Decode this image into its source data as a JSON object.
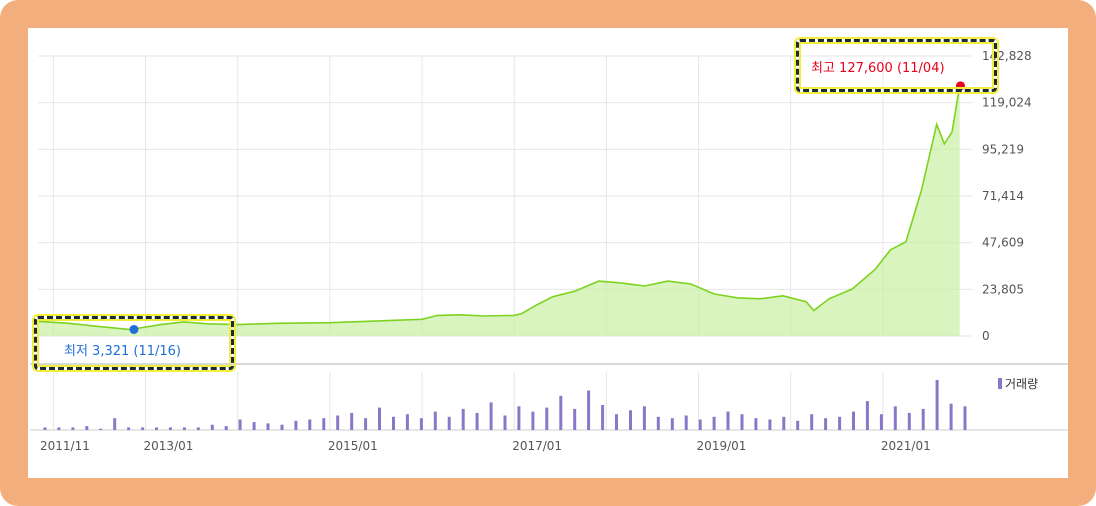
{
  "chart_data": {
    "type": "line",
    "price_axis": {
      "ylim": [
        0,
        142828
      ],
      "ticks": [
        "0",
        "23,805",
        "47,609",
        "71,414",
        "95,219",
        "119,024",
        "142,828"
      ]
    },
    "x_ticks": [
      "2011/11",
      "2013/01",
      "2015/01",
      "2017/01",
      "2019/01",
      "2021/01"
    ],
    "volume_label": "거래량",
    "price_series": {
      "dates": [
        "2011-11",
        "2012-03",
        "2012-06",
        "2012-11",
        "2013-03",
        "2013-06",
        "2013-09",
        "2014-01",
        "2014-06",
        "2015-01",
        "2015-06",
        "2016-01",
        "2016-03",
        "2016-06",
        "2016-09",
        "2017-01",
        "2017-02",
        "2017-04",
        "2017-06",
        "2017-09",
        "2017-12",
        "2018-03",
        "2018-06",
        "2018-09",
        "2018-12",
        "2019-03",
        "2019-06",
        "2019-09",
        "2019-12",
        "2020-03",
        "2020-04",
        "2020-06",
        "2020-09",
        "2020-12",
        "2021-02",
        "2021-04",
        "2021-06",
        "2021-08",
        "2021-09",
        "2021-10",
        "2021-11"
      ],
      "values": [
        7500,
        6500,
        5200,
        3321,
        5800,
        7200,
        6200,
        5800,
        6500,
        6800,
        7500,
        8500,
        10500,
        10800,
        10200,
        10500,
        11500,
        16000,
        20000,
        23000,
        28000,
        27000,
        25500,
        28000,
        26500,
        21500,
        19500,
        19000,
        20500,
        17500,
        13000,
        19000,
        24000,
        34000,
        44000,
        48000,
        74000,
        108000,
        98000,
        104000,
        127600
      ]
    },
    "volume_series": {
      "values": [
        2,
        2,
        2,
        3,
        1,
        9,
        2,
        2,
        2,
        2,
        2,
        2,
        4,
        3,
        8,
        6,
        5,
        4,
        7,
        8,
        9,
        11,
        13,
        9,
        17,
        10,
        12,
        9,
        14,
        10,
        16,
        13,
        21,
        11,
        18,
        14,
        17,
        26,
        16,
        30,
        19,
        12,
        15,
        18,
        10,
        9,
        11,
        8,
        10,
        14,
        12,
        9,
        8,
        10,
        7,
        12,
        9,
        10,
        14,
        22,
        12,
        18,
        13,
        16,
        38,
        20,
        18
      ]
    },
    "annotations": [
      {
        "label": "최고 127,600 (11/04)",
        "value": 127600,
        "date": "2021-11-04",
        "color": "#e8001c"
      },
      {
        "label": "최저 3,321 (11/16)",
        "value": 3321,
        "date": "2012-11-16",
        "color": "#1f6fd6"
      }
    ],
    "colors": {
      "line": "#7ed321",
      "area": "#c9efa4",
      "volume": "#8a77c8",
      "grid": "#e6e6e6"
    }
  }
}
